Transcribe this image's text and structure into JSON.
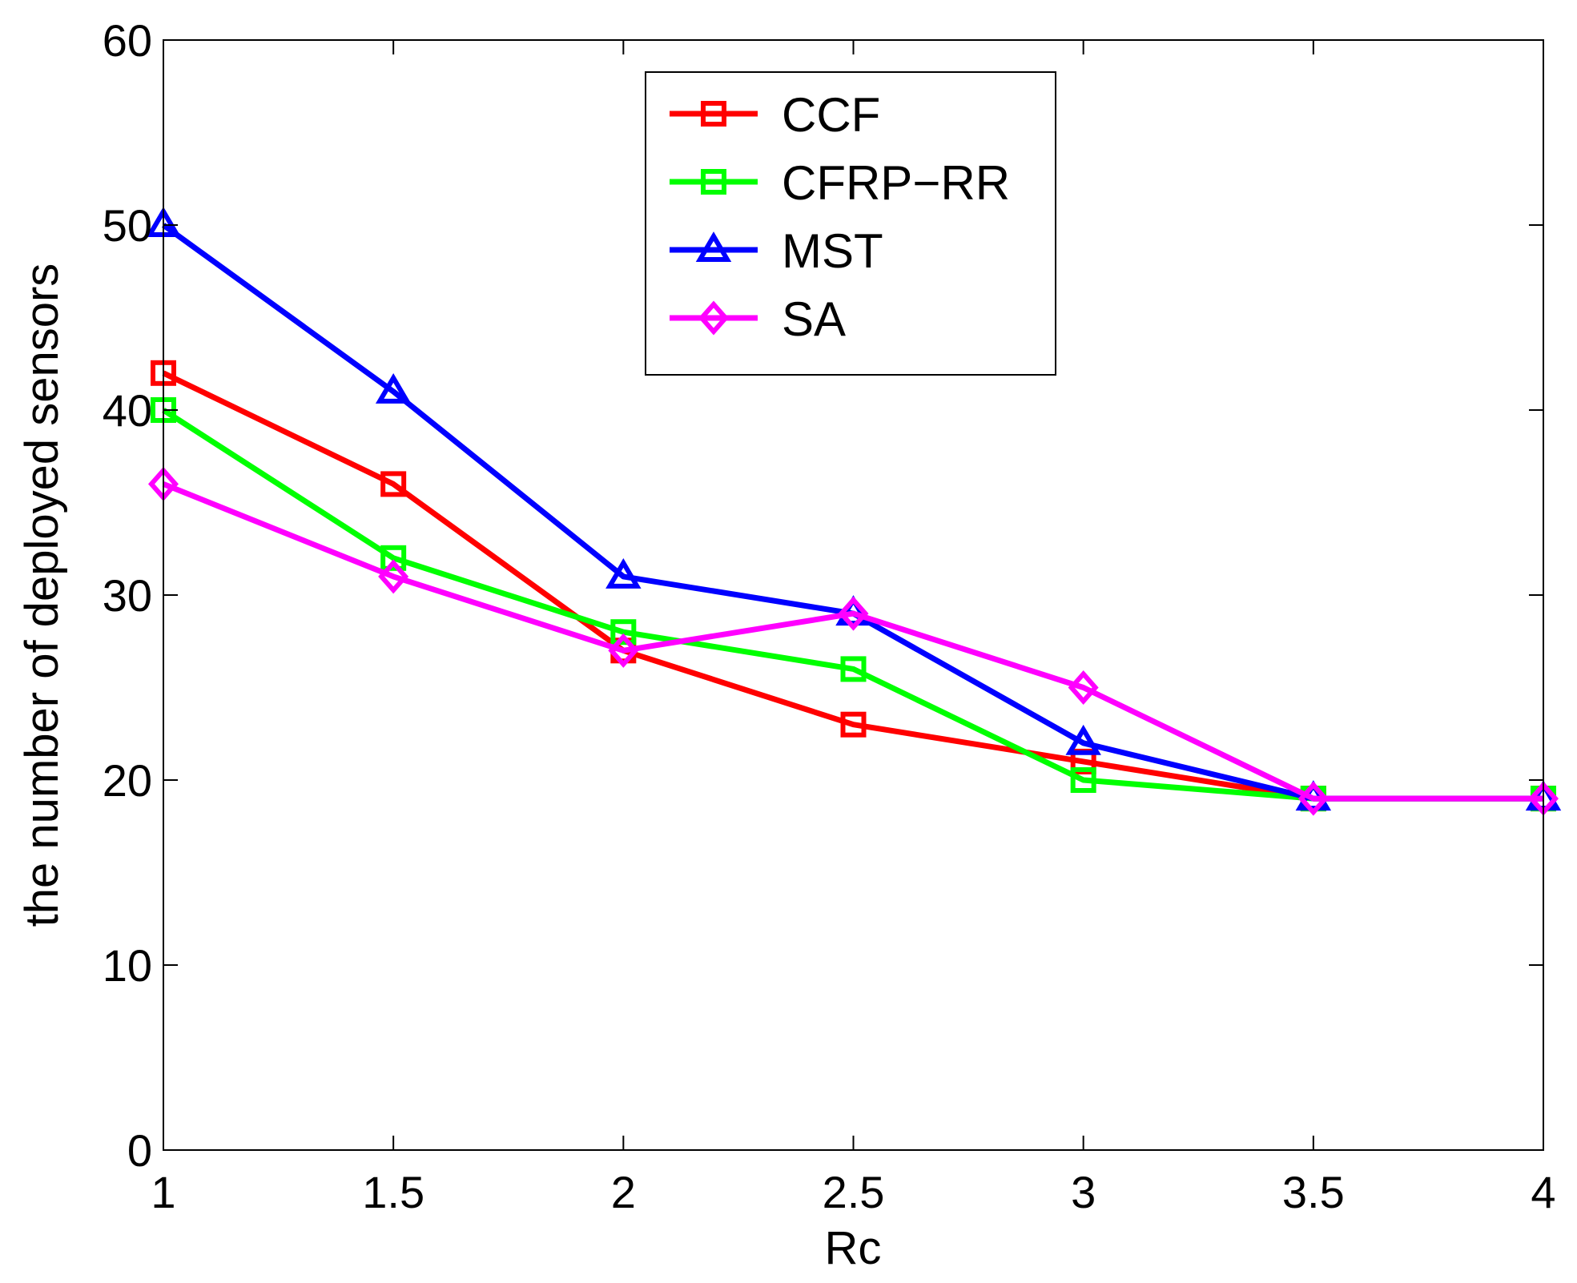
{
  "chart_data": {
    "type": "line",
    "title": "",
    "xlabel": "Rc",
    "ylabel": "the number of deployed sensors",
    "x": [
      1,
      1.5,
      2,
      2.5,
      3,
      3.5,
      4
    ],
    "xlim": [
      1,
      4
    ],
    "ylim": [
      0,
      60
    ],
    "xticks": [
      "1",
      "1.5",
      "2",
      "2.5",
      "3",
      "3.5",
      "4"
    ],
    "yticks": [
      "0",
      "10",
      "20",
      "30",
      "40",
      "50",
      "60"
    ],
    "grid": false,
    "legend_position": "top-center",
    "series": [
      {
        "name": "CCF",
        "color": "#ff0000",
        "marker": "square",
        "values": [
          42,
          36,
          27,
          23,
          21,
          19,
          19
        ]
      },
      {
        "name": "CFRP−RR",
        "color": "#00ff00",
        "marker": "square",
        "values": [
          40,
          32,
          28,
          26,
          20,
          19,
          19
        ]
      },
      {
        "name": "MST",
        "color": "#0000ff",
        "marker": "triangle",
        "values": [
          50,
          41,
          31,
          29,
          22,
          19,
          19
        ]
      },
      {
        "name": "SA",
        "color": "#ff00ff",
        "marker": "diamond",
        "values": [
          36,
          31,
          27,
          29,
          25,
          19,
          19
        ]
      }
    ]
  }
}
